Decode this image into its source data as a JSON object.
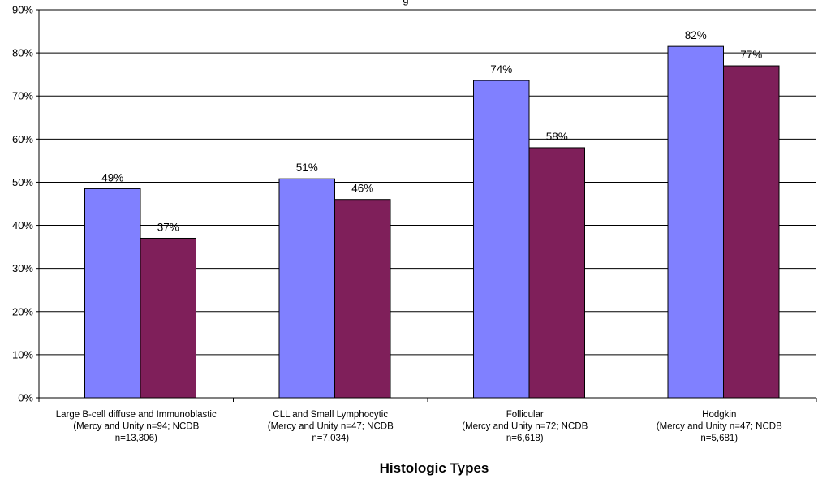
{
  "chart_data": {
    "type": "bar",
    "title": "",
    "xlabel": "Histologic Types",
    "ylabel": "",
    "ylim": [
      0,
      90
    ],
    "y_ticks": [
      "0%",
      "10%",
      "20%",
      "30%",
      "40%",
      "50%",
      "60%",
      "70%",
      "80%",
      "90%"
    ],
    "y_tick_values": [
      0,
      10,
      20,
      30,
      40,
      50,
      60,
      70,
      80,
      90
    ],
    "grid": "horizontal",
    "legend": "none",
    "categories": [
      [
        "Large B-cell diffuse and Immunoblastic",
        "(Mercy and Unity n=94; NCDB",
        "n=13,306)"
      ],
      [
        "CLL and Small Lymphocytic",
        "(Mercy and Unity n=47; NCDB",
        "n=7,034)"
      ],
      [
        "Follicular",
        "(Mercy and Unity n=72; NCDB",
        "n=6,618)"
      ],
      [
        "Hodgkin",
        "(Mercy and Unity n=47; NCDB",
        "n=5,681)"
      ]
    ],
    "series": [
      {
        "values": [
          48.5,
          50.8,
          73.6,
          81.5
        ],
        "labels": [
          "49%",
          "51%",
          "74%",
          "82%"
        ],
        "color": "#8080ff"
      },
      {
        "values": [
          37,
          46,
          58,
          77
        ],
        "labels": [
          "37%",
          "46%",
          "58%",
          "77%"
        ],
        "color": "#7f1f5a"
      }
    ]
  }
}
